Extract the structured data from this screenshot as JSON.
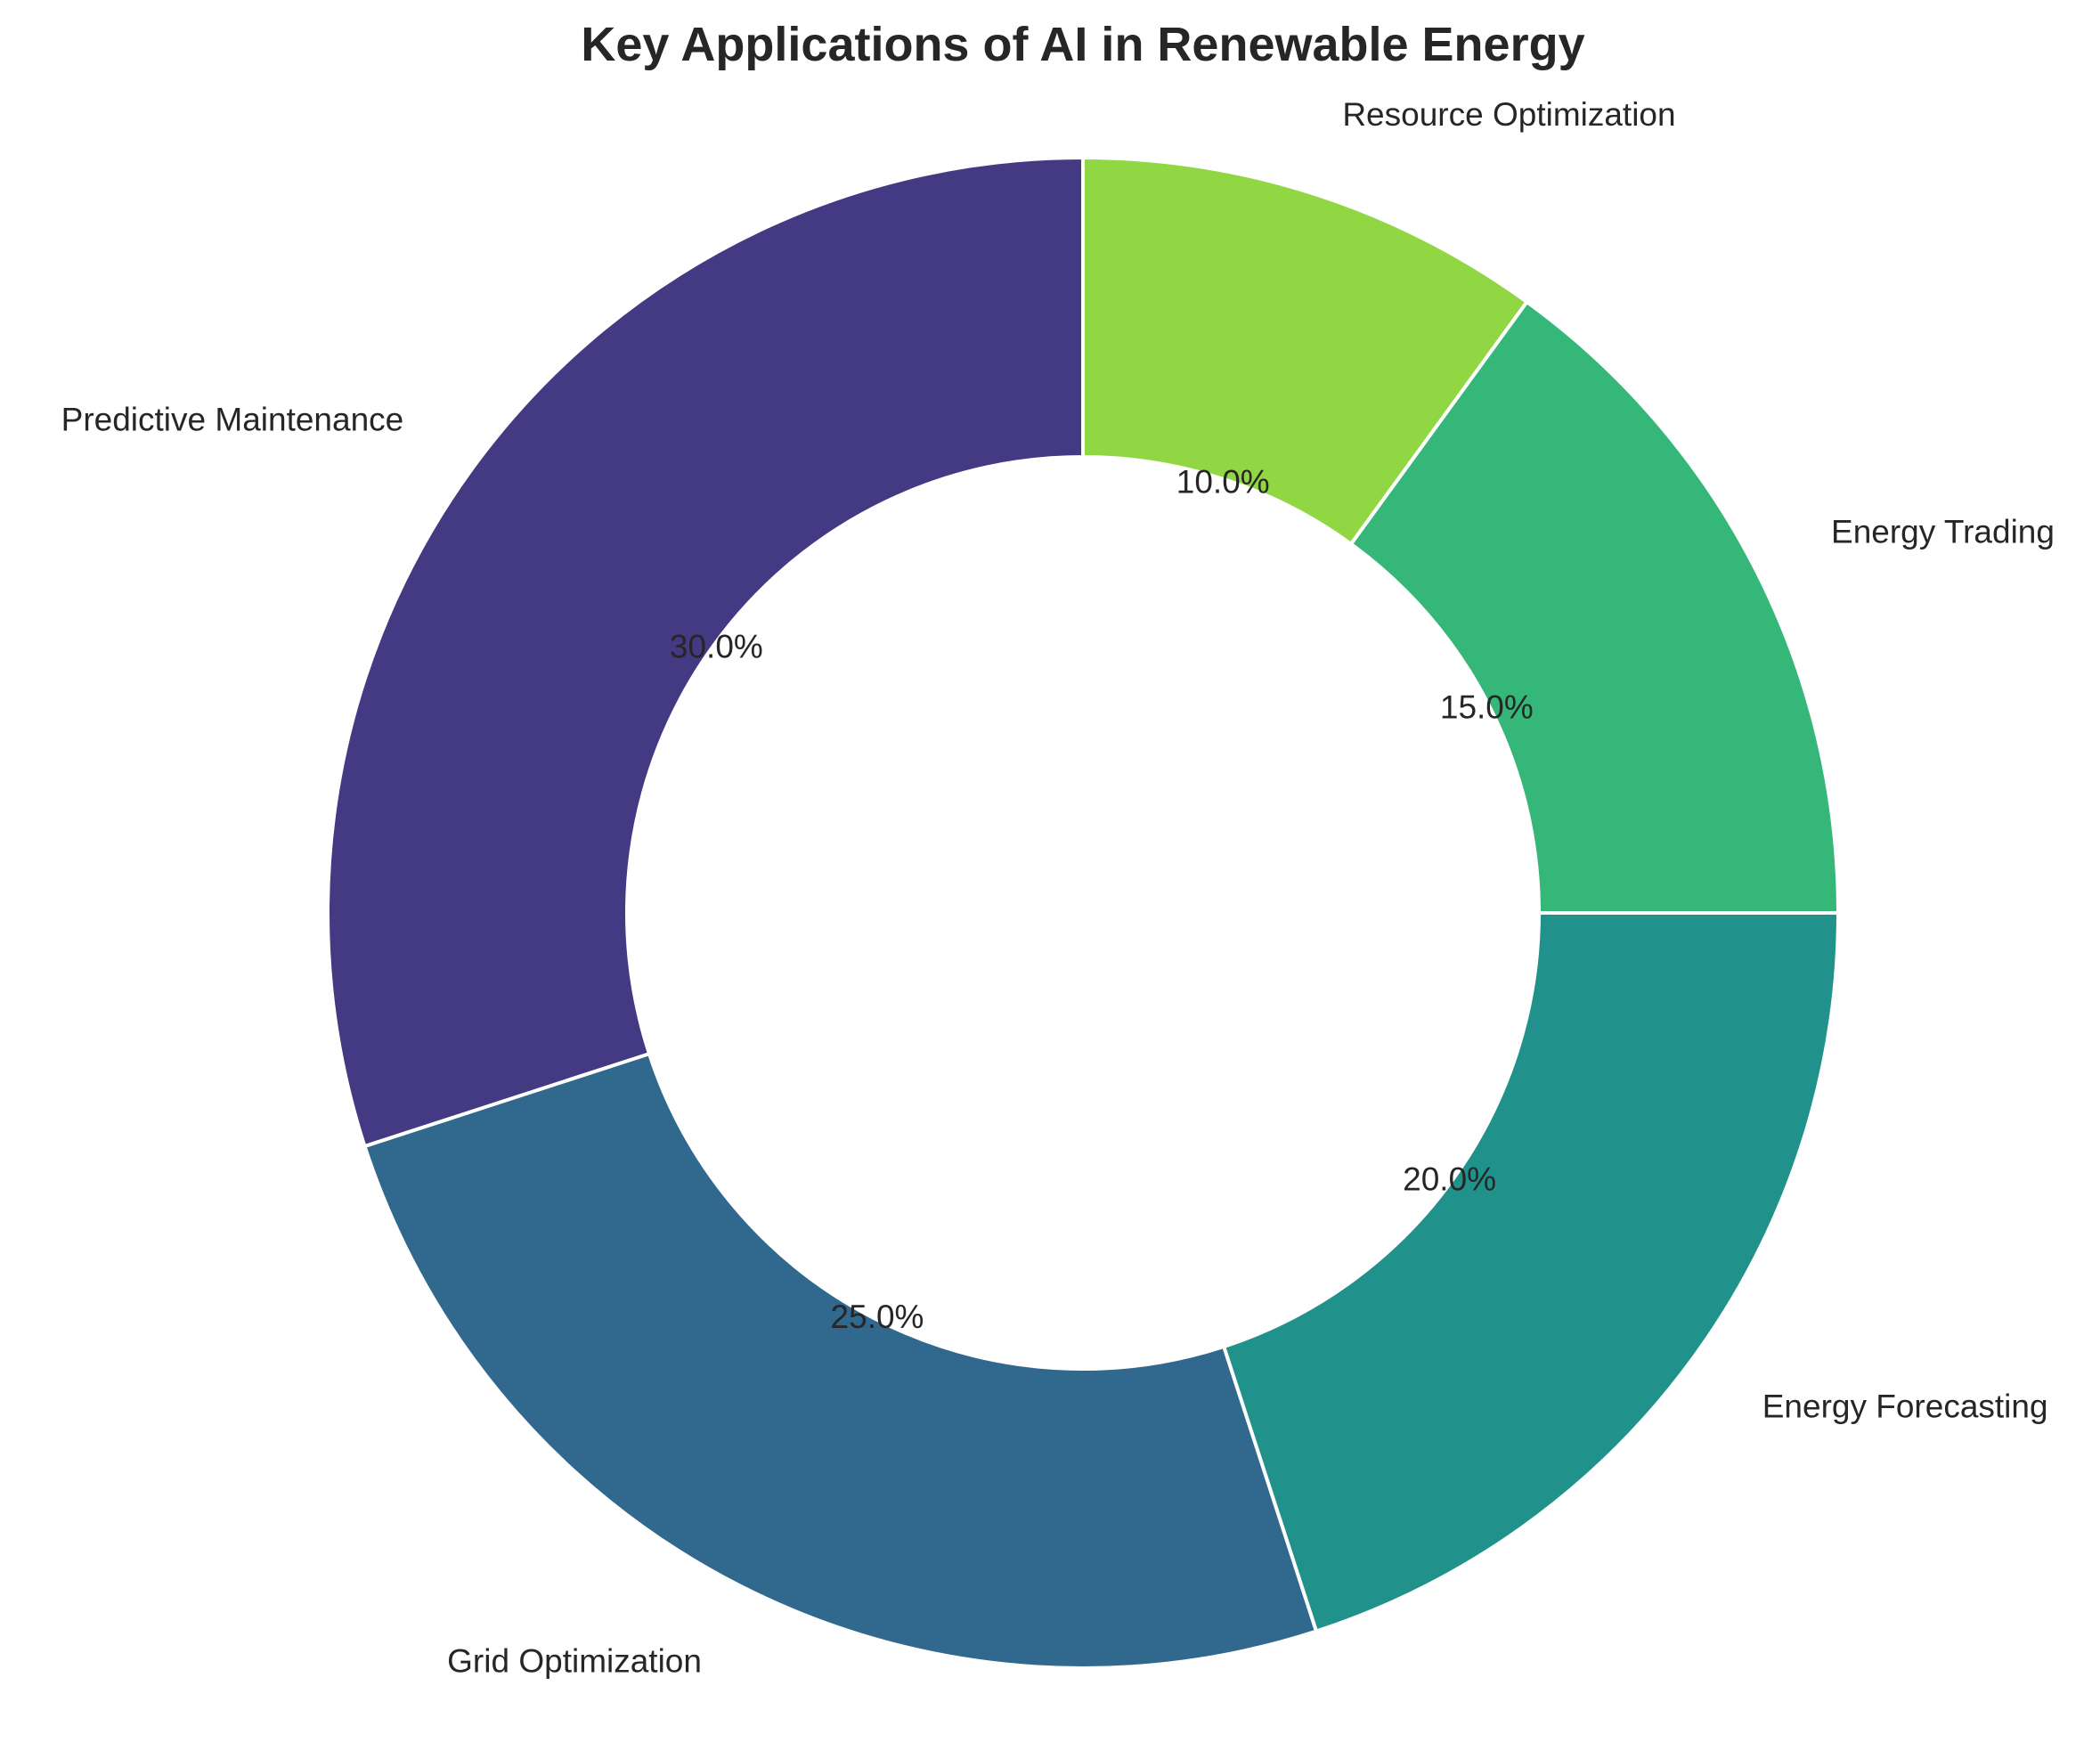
{
  "chart_data": {
    "type": "pie",
    "variant": "donut",
    "title": "Key Applications of AI in Renewable Energy",
    "categories": [
      "Predictive Maintenance",
      "Grid Optimization",
      "Energy Forecasting",
      "Energy Trading",
      "Resource Optimization"
    ],
    "values": [
      30,
      25,
      20,
      15,
      10
    ],
    "percent_labels": [
      "30.0%",
      "25.0%",
      "20.0%",
      "15.0%",
      "10.0%"
    ],
    "colors": [
      "#443983",
      "#31688e",
      "#21918c",
      "#35b779",
      "#90d743"
    ],
    "start_angle_deg": 90,
    "direction": "counterclockwise",
    "legend": "none"
  }
}
